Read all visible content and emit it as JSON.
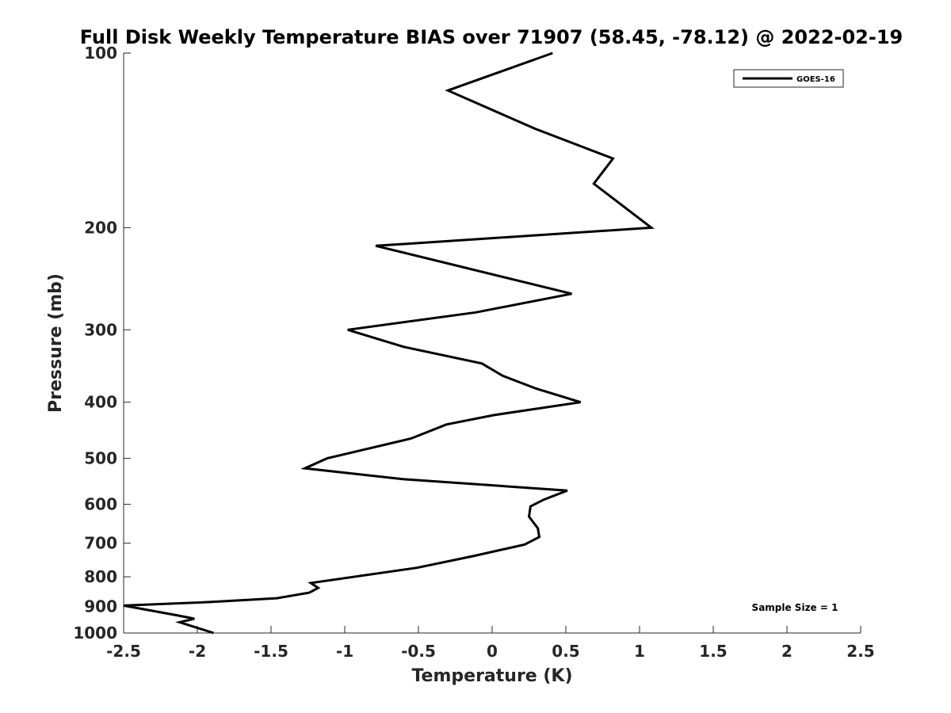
{
  "chart_data": {
    "type": "line",
    "title": "Full Disk Weekly Temperature BIAS over 71907 (58.45, -78.12) @ 2022-02-19",
    "xlabel": "Temperature (K)",
    "ylabel": "Pressure (mb)",
    "xlim": [
      -2.5,
      2.5
    ],
    "ylim": [
      100,
      1000
    ],
    "y_scale": "log",
    "y_reversed": true,
    "x_ticks": [
      "-2.5",
      "-2",
      "-1.5",
      "-1",
      "-0.5",
      "0",
      "0.5",
      "1",
      "1.5",
      "2",
      "2.5"
    ],
    "y_ticks": [
      100,
      200,
      300,
      400,
      500,
      600,
      700,
      800,
      900,
      1000
    ],
    "grid": false,
    "legend_position": "top-right",
    "annotation": "Sample Size = 1",
    "series": [
      {
        "name": "GOES-16",
        "color": "#000000",
        "points": [
          [
            0.41,
            100
          ],
          [
            -0.3,
            116
          ],
          [
            0.29,
            135
          ],
          [
            0.82,
            152
          ],
          [
            0.69,
            168
          ],
          [
            1.08,
            200
          ],
          [
            -0.79,
            215
          ],
          [
            0.54,
            260
          ],
          [
            -0.11,
            280
          ],
          [
            -0.98,
            300
          ],
          [
            -0.6,
            321
          ],
          [
            -0.07,
            343
          ],
          [
            0.07,
            360
          ],
          [
            0.3,
            379
          ],
          [
            0.6,
            400
          ],
          [
            0.01,
            421
          ],
          [
            -0.31,
            437
          ],
          [
            -0.55,
            462
          ],
          [
            -1.12,
            500
          ],
          [
            -1.27,
            520
          ],
          [
            -0.6,
            543
          ],
          [
            0.51,
            568
          ],
          [
            0.35,
            589
          ],
          [
            0.26,
            605
          ],
          [
            0.25,
            630
          ],
          [
            0.31,
            660
          ],
          [
            0.32,
            683
          ],
          [
            0.22,
            704
          ],
          [
            -0.13,
            737
          ],
          [
            -0.51,
            772
          ],
          [
            -1.23,
            820
          ],
          [
            -1.18,
            836
          ],
          [
            -1.24,
            852
          ],
          [
            -1.46,
            871
          ],
          [
            -1.9,
            884
          ],
          [
            -2.5,
            897
          ],
          [
            -2.14,
            932
          ],
          [
            -2.02,
            945
          ],
          [
            -2.12,
            958
          ],
          [
            -1.89,
            1000
          ]
        ]
      }
    ]
  }
}
